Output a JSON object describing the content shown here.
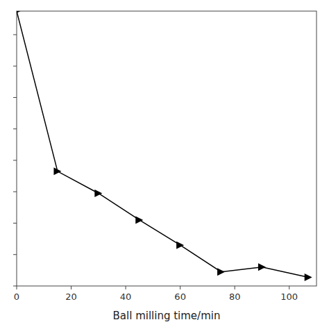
{
  "chart_data": {
    "type": "line",
    "x": [
      0,
      15,
      30,
      45,
      60,
      75,
      90,
      107
    ],
    "values": [
      1800,
      780,
      640,
      470,
      310,
      140,
      170,
      105
    ],
    "xlabel": "Ball milling time/min",
    "xlim": [
      0,
      110
    ],
    "ylim": [
      50,
      1800
    ],
    "xticks": [
      0,
      20,
      40,
      60,
      80,
      100
    ],
    "yticks": [
      50,
      250,
      450,
      650,
      850,
      1050,
      1250,
      1450,
      1650
    ],
    "tick_labels": "x",
    "grid": false,
    "color": "#000000",
    "marker": "triangle-right"
  }
}
